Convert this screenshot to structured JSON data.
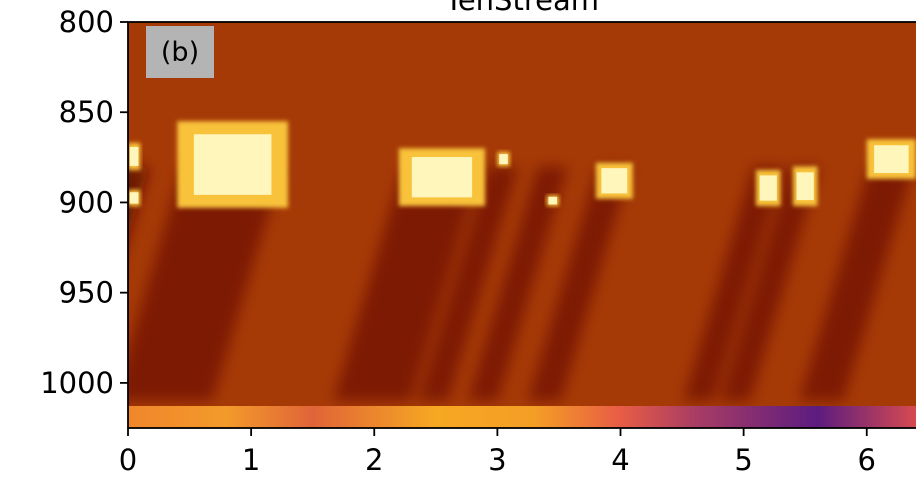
{
  "chart_data": {
    "type": "heatmap",
    "title": "TenStream",
    "panel_label": "(b)",
    "xlabel": "",
    "ylabel": "",
    "xlim": [
      0,
      6.4
    ],
    "ylim": [
      1025,
      800
    ],
    "x_ticks": [
      0,
      1,
      2,
      3,
      4,
      5,
      6
    ],
    "y_ticks": [
      800,
      850,
      900,
      950,
      1000
    ],
    "grid": false,
    "legend": "none",
    "bright_cloud_patches": [
      {
        "x": [
          0.0,
          0.1
        ],
        "y": [
          867,
          882
        ]
      },
      {
        "x": [
          0.0,
          0.1
        ],
        "y": [
          893,
          902
        ]
      },
      {
        "x": [
          0.4,
          1.3
        ],
        "y": [
          855,
          903
        ]
      },
      {
        "x": [
          2.2,
          2.9
        ],
        "y": [
          870,
          902
        ]
      },
      {
        "x": [
          3.0,
          3.1
        ],
        "y": [
          872,
          880
        ]
      },
      {
        "x": [
          3.4,
          3.5
        ],
        "y": [
          896,
          902
        ]
      },
      {
        "x": [
          3.8,
          4.1
        ],
        "y": [
          878,
          898
        ]
      },
      {
        "x": [
          5.1,
          5.3
        ],
        "y": [
          882,
          902
        ]
      },
      {
        "x": [
          5.4,
          5.6
        ],
        "y": [
          880,
          902
        ]
      },
      {
        "x": [
          6.0,
          6.4
        ],
        "y": [
          865,
          887
        ]
      }
    ],
    "surface_row_color_stops": [
      {
        "x": 0.0,
        "color": "#f0862c"
      },
      {
        "x": 0.8,
        "color": "#f39a2a"
      },
      {
        "x": 1.5,
        "color": "#e06438"
      },
      {
        "x": 2.5,
        "color": "#f6a822"
      },
      {
        "x": 3.3,
        "color": "#f49e25"
      },
      {
        "x": 4.0,
        "color": "#e85c45"
      },
      {
        "x": 4.6,
        "color": "#a93d64"
      },
      {
        "x": 5.6,
        "color": "#5c1c80"
      },
      {
        "x": 6.4,
        "color": "#d64a50"
      }
    ],
    "colors": {
      "background": "#a63a06",
      "dark_streak": "#5c0b06",
      "cloud_bright": "#fff6bc",
      "cloud_edge": "#f8c23a"
    }
  }
}
